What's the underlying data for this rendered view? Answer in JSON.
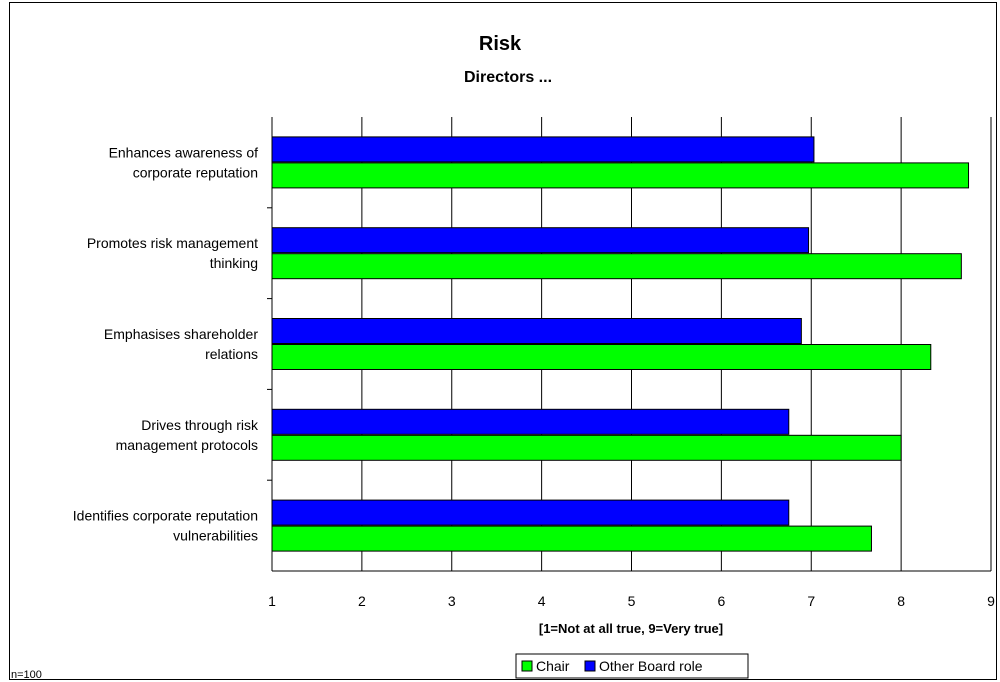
{
  "chart_data": {
    "type": "bar",
    "orientation": "horizontal",
    "title": "Risk",
    "subtitle": "Directors ...",
    "xlabel": "[1=Not at all true, 9=Very true]",
    "xlim": [
      1,
      9
    ],
    "xticks": [
      1,
      2,
      3,
      4,
      5,
      6,
      7,
      8,
      9
    ],
    "grid": "vertical",
    "legend_position": "bottom",
    "note": "n=100",
    "categories": [
      [
        "Enhances awareness of",
        "corporate reputation"
      ],
      [
        "Promotes risk management",
        "thinking"
      ],
      [
        "Emphasises shareholder",
        "relations"
      ],
      [
        "Drives through risk",
        "management protocols"
      ],
      [
        "Identifies corporate reputation",
        "vulnerabilities"
      ]
    ],
    "series": [
      {
        "name": "Chair",
        "color": "#00ff00",
        "values": [
          8.75,
          8.67,
          8.33,
          8.0,
          7.67
        ]
      },
      {
        "name": "Other Board role",
        "color": "#0000ff",
        "values": [
          7.03,
          6.97,
          6.89,
          6.75,
          6.75
        ]
      }
    ]
  }
}
